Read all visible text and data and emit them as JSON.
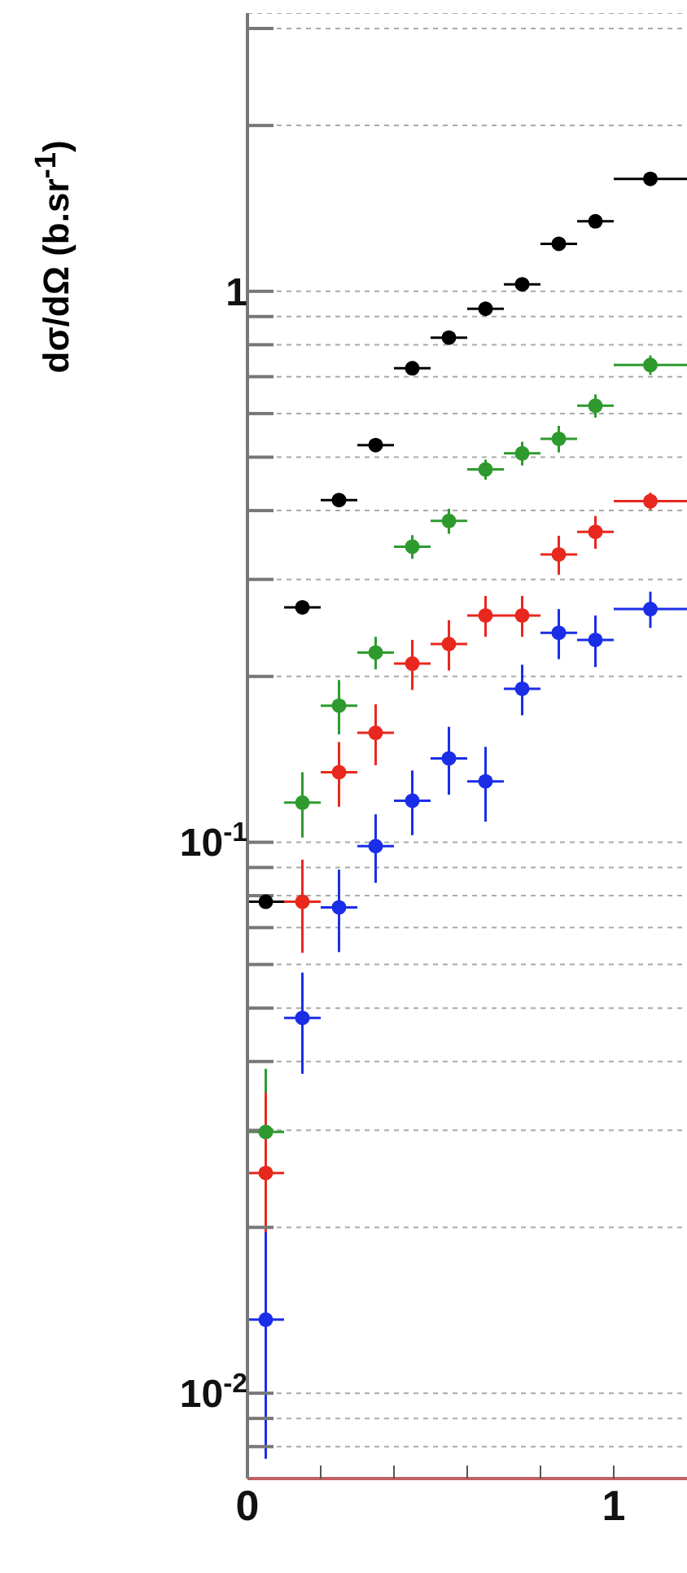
{
  "chart_data": {
    "type": "scatter",
    "ylabel": "dσ/dΩ (b.sr$^{-1}$)",
    "log": "y",
    "grid": "y",
    "marker": "circle",
    "x": [
      0.05,
      0.15,
      0.25,
      0.35,
      0.45,
      0.55,
      0.65,
      0.75,
      0.85,
      0.95,
      1.1
    ],
    "xlim": [
      0,
      1.2
    ],
    "xticks": [
      0,
      {
        "value": 0.2,
        "label": null
      },
      {
        "value": 0.4,
        "label": null
      },
      {
        "value": 0.6,
        "label": null
      },
      {
        "value": 0.8,
        "label": null
      },
      1
    ],
    "ylim": [
      0.007,
      3.2
    ],
    "yticks": [
      {
        "value": 0.008,
        "label": null
      },
      {
        "value": 0.009,
        "label": null
      },
      {
        "value": 0.01,
        "label": "10$^{-2}$"
      },
      {
        "value": 0.02,
        "label": null
      },
      {
        "value": 0.03,
        "label": null
      },
      {
        "value": 0.04,
        "label": null
      },
      {
        "value": 0.05,
        "label": null
      },
      {
        "value": 0.06,
        "label": null
      },
      {
        "value": 0.07,
        "label": null
      },
      {
        "value": 0.08,
        "label": null
      },
      {
        "value": 0.09,
        "label": null
      },
      {
        "value": 0.1,
        "label": "10$^{-1}$"
      },
      {
        "value": 0.2,
        "label": null
      },
      {
        "value": 0.3,
        "label": null
      },
      {
        "value": 0.4,
        "label": null
      },
      {
        "value": 0.5,
        "label": null
      },
      {
        "value": 0.6,
        "label": null
      },
      {
        "value": 0.7,
        "label": null
      },
      {
        "value": 0.8,
        "label": null
      },
      {
        "value": 0.9,
        "label": null
      },
      1,
      {
        "value": 2,
        "label": null
      },
      {
        "value": 3,
        "label": null
      }
    ],
    "series": [
      {
        "color": "#000000",
        "values": [
          0.078,
          0.267,
          0.418,
          0.526,
          0.725,
          0.824,
          0.93,
          1.03,
          1.22,
          1.34,
          1.6
        ],
        "xerrors": [
          0.05,
          0.05,
          0.05,
          0.05,
          0.05,
          0.05,
          0.05,
          0.05,
          0.05,
          0.05,
          0.1
        ]
      },
      {
        "color": "#2e9a2e",
        "values": [
          0.0298,
          0.118,
          0.177,
          0.221,
          0.344,
          0.383,
          0.475,
          0.508,
          0.54,
          0.62,
          0.735
        ],
        "errors": [
          0.009,
          0.016,
          0.02,
          0.015,
          0.017,
          0.02,
          0.02,
          0.025,
          0.03,
          0.03,
          0.03
        ],
        "xerrors": [
          0.05,
          0.05,
          0.05,
          0.05,
          0.05,
          0.05,
          0.05,
          0.05,
          0.05,
          0.05,
          0.1
        ]
      },
      {
        "color": "#e8281e",
        "values": [
          0.0251,
          0.078,
          0.134,
          0.158,
          0.211,
          0.229,
          0.258,
          0.258,
          0.333,
          0.366,
          0.416
        ],
        "errors": [
          0.01,
          0.015,
          0.018,
          0.02,
          0.022,
          0.024,
          0.022,
          0.022,
          0.027,
          0.025,
          0.015
        ],
        "xerrors": [
          0.05,
          0.05,
          0.05,
          0.05,
          0.05,
          0.05,
          0.05,
          0.05,
          0.05,
          0.05,
          0.1
        ]
      },
      {
        "color": "#1a2ee8",
        "values": [
          0.0136,
          0.048,
          0.0762,
          0.0984,
          0.119,
          0.142,
          0.129,
          0.19,
          0.24,
          0.233,
          0.265
        ],
        "errors": [
          0.006,
          0.01,
          0.013,
          0.014,
          0.016,
          0.02,
          0.02,
          0.02,
          0.025,
          0.025,
          0.02
        ],
        "xerrors": [
          0.05,
          0.05,
          0.05,
          0.05,
          0.05,
          0.05,
          0.05,
          0.05,
          0.05,
          0.05,
          0.1
        ]
      }
    ]
  }
}
